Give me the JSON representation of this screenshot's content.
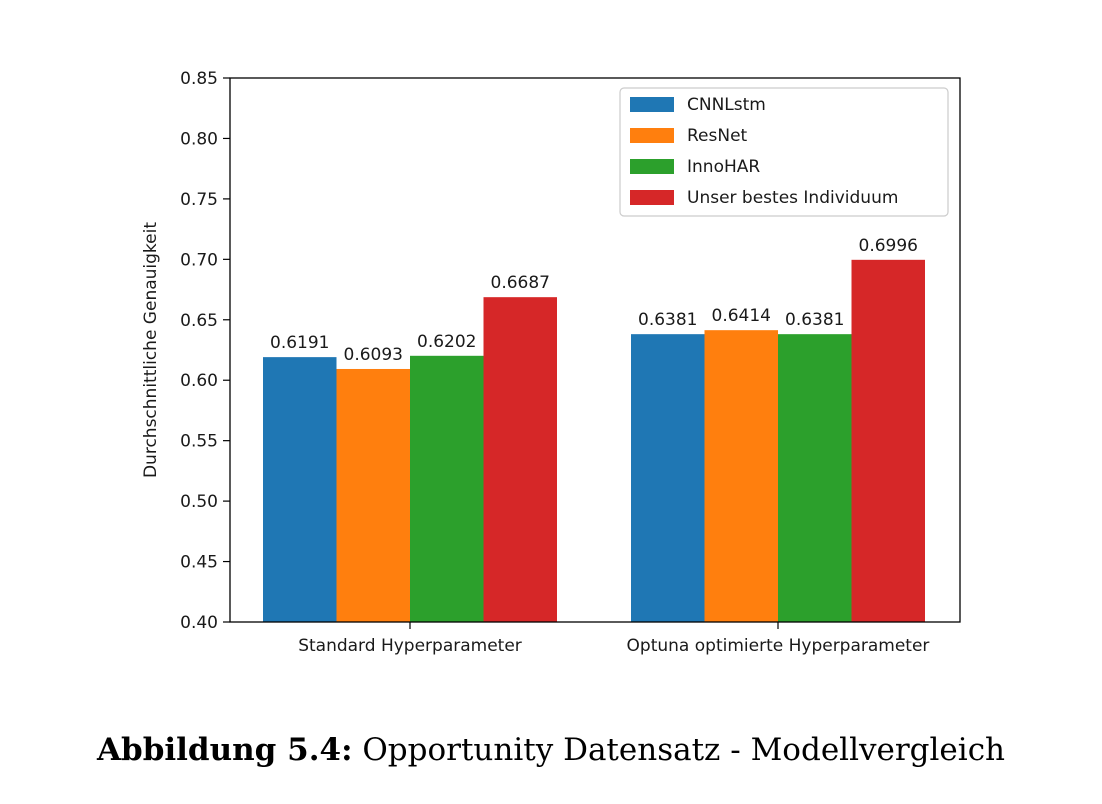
{
  "chart_data": {
    "type": "bar",
    "title": "",
    "xlabel": "",
    "ylabel": "Durchschnittliche Genauigkeit",
    "ylim": [
      0.4,
      0.85
    ],
    "yticks": [
      "0.40",
      "0.45",
      "0.50",
      "0.55",
      "0.60",
      "0.65",
      "0.70",
      "0.75",
      "0.80",
      "0.85"
    ],
    "categories": [
      "Standard Hyperparameter",
      "Optuna optimierte Hyperparameter"
    ],
    "series": [
      {
        "name": "CNNLstm",
        "color": "#1f77b4",
        "values": [
          0.6191,
          0.6381
        ],
        "labels": [
          "0.6191",
          "0.6381"
        ]
      },
      {
        "name": "ResNet",
        "color": "#ff7f0e",
        "values": [
          0.6093,
          0.6414
        ],
        "labels": [
          "0.6093",
          "0.6414"
        ]
      },
      {
        "name": "InnoHAR",
        "color": "#2ca02c",
        "values": [
          0.6202,
          0.6381
        ],
        "labels": [
          "0.6202",
          "0.6381"
        ]
      },
      {
        "name": "Unser bestes Individuum",
        "color": "#d62728",
        "values": [
          0.6687,
          0.6996
        ],
        "labels": [
          "0.6687",
          "0.6996"
        ]
      }
    ],
    "legend_position": "top-right",
    "grid": false
  },
  "caption": {
    "label": "Abbildung 5.4:",
    "text": " Opportunity Datensatz - Modellvergleich"
  }
}
